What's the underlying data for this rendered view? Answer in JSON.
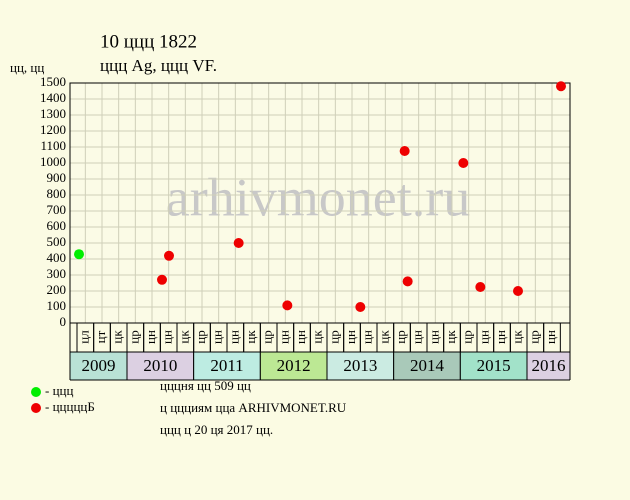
{
  "chart_data": {
    "type": "scatter",
    "title": "10 ццц 1822",
    "subtitle": "ццц Ag, ццц VF.",
    "y_label": "цц, цц",
    "watermark": "arhivmonet.ru",
    "xlim": [
      2009.145,
      2016.645
    ],
    "ylim": [
      0,
      1500
    ],
    "yticks": [
      0,
      100,
      200,
      300,
      400,
      500,
      600,
      700,
      800,
      900,
      1000,
      1100,
      1200,
      1300,
      1400,
      1500
    ],
    "grid": true,
    "xticks": [
      {
        "value": 2009.375,
        "label": "цл"
      },
      {
        "value": 2009.625,
        "label": "цт"
      },
      {
        "value": 2009.875,
        "label": "цк"
      },
      {
        "value": 2010.125,
        "label": "цр"
      },
      {
        "value": 2010.375,
        "label": "цн"
      },
      {
        "value": 2010.625,
        "label": "цн"
      },
      {
        "value": 2010.875,
        "label": "цк"
      },
      {
        "value": 2011.125,
        "label": "цр"
      },
      {
        "value": 2011.375,
        "label": "цн"
      },
      {
        "value": 2011.625,
        "label": "цн"
      },
      {
        "value": 2011.875,
        "label": "цк"
      },
      {
        "value": 2012.125,
        "label": "цр"
      },
      {
        "value": 2012.375,
        "label": "цн"
      },
      {
        "value": 2012.625,
        "label": "цн"
      },
      {
        "value": 2012.875,
        "label": "цк"
      },
      {
        "value": 2013.125,
        "label": "цр"
      },
      {
        "value": 2013.375,
        "label": "цн"
      },
      {
        "value": 2013.625,
        "label": "цн"
      },
      {
        "value": 2013.875,
        "label": "цк"
      },
      {
        "value": 2014.125,
        "label": "цр"
      },
      {
        "value": 2014.375,
        "label": "цн"
      },
      {
        "value": 2014.625,
        "label": "цн"
      },
      {
        "value": 2014.875,
        "label": "цк"
      },
      {
        "value": 2015.125,
        "label": "цр"
      },
      {
        "value": 2015.375,
        "label": "цн"
      },
      {
        "value": 2015.625,
        "label": "цн"
      },
      {
        "value": 2015.875,
        "label": "цк"
      },
      {
        "value": 2016.125,
        "label": "цр"
      },
      {
        "value": 2016.375,
        "label": "цн"
      }
    ],
    "year_bands": [
      {
        "label": "2009",
        "start": 2009,
        "end": 2010,
        "color": "#b9e2d6"
      },
      {
        "label": "2010",
        "start": 2010,
        "end": 2011,
        "color": "#dcd0e2"
      },
      {
        "label": "2011",
        "start": 2011,
        "end": 2012,
        "color": "#bdece2"
      },
      {
        "label": "2012",
        "start": 2012,
        "end": 2013,
        "color": "#bce894"
      },
      {
        "label": "2013",
        "start": 2013,
        "end": 2014,
        "color": "#cbebe2"
      },
      {
        "label": "2014",
        "start": 2014,
        "end": 2015,
        "color": "#a9c9b9"
      },
      {
        "label": "2015",
        "start": 2015,
        "end": 2016,
        "color": "#a2e2c9"
      },
      {
        "label": "2016",
        "start": 2016,
        "end": 2017,
        "color": "#dcd0e2"
      }
    ],
    "series": [
      {
        "name": "- ццц",
        "color": "#00ee00",
        "x": [
          2009.28
        ],
        "values": [
          430
        ]
      },
      {
        "name": "- цццццБ",
        "color": "#ee0000",
        "x": [
          2010.525,
          2010.63,
          2011.675,
          2012.405,
          2013.5,
          2014.165,
          2014.21,
          2015.045,
          2015.3,
          2015.865,
          2016.51
        ],
        "values": [
          270,
          420,
          500,
          110,
          100,
          1075,
          260,
          1000,
          225,
          200,
          1480
        ]
      }
    ],
    "notes": [
      "цццня цц 509 цц",
      "ц ццциям цца ARHIVMONET.RU",
      "ццц ц 20 ця 2017 цц."
    ]
  }
}
